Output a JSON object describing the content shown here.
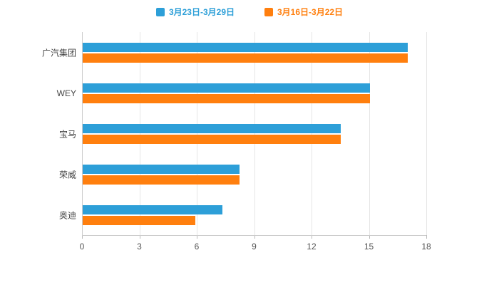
{
  "chart_data": {
    "type": "bar",
    "orientation": "horizontal",
    "title": "",
    "xlabel": "",
    "ylabel": "",
    "categories": [
      "广汽集团",
      "WEY",
      "宝马",
      "荣威",
      "奥迪"
    ],
    "series": [
      {
        "name": "3月23日-3月29日",
        "color": "#2D9FD8",
        "values": [
          17,
          15,
          13.5,
          8.2,
          7.3
        ]
      },
      {
        "name": "3月16日-3月22日",
        "color": "#FF7F0E",
        "values": [
          17,
          15,
          13.5,
          8.2,
          5.9
        ]
      }
    ],
    "xlim": [
      0,
      18
    ],
    "xticks": [
      0,
      3,
      6,
      9,
      12,
      15,
      18
    ],
    "grid": true,
    "legend_position": "top"
  }
}
